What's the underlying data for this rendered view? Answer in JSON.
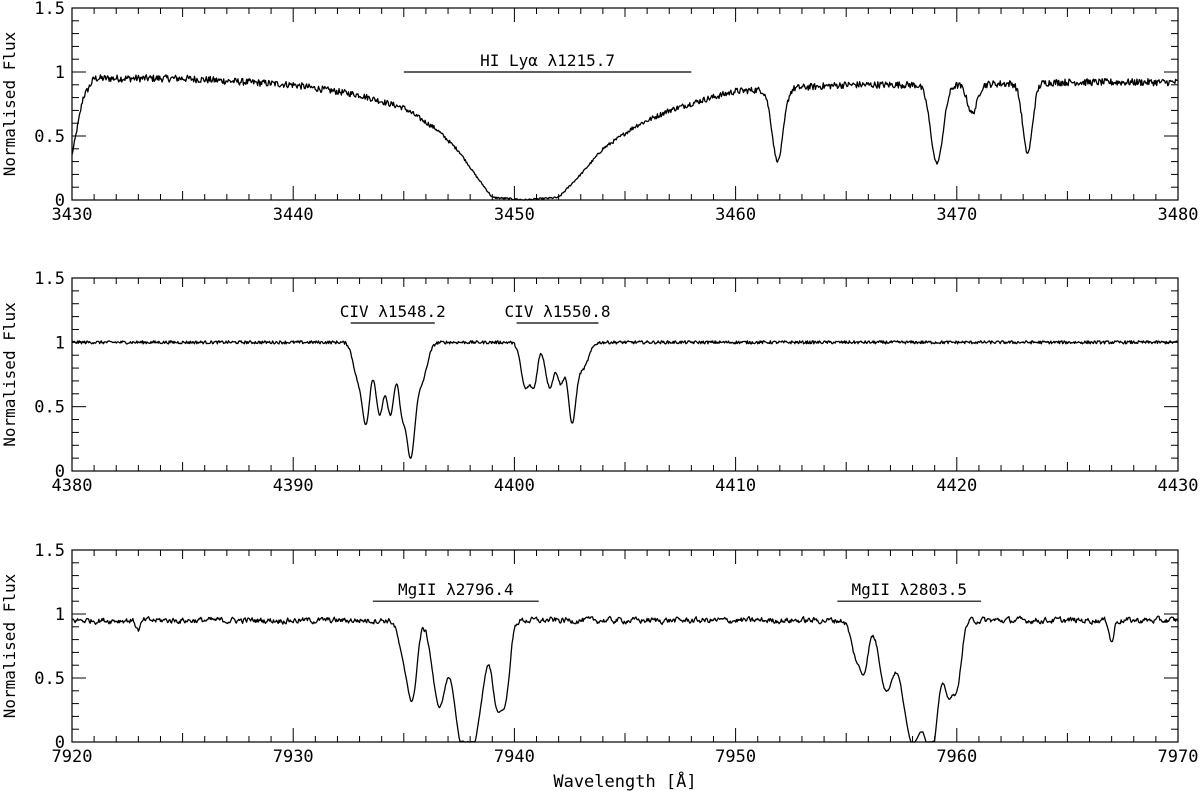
{
  "chart_data": [
    {
      "type": "line",
      "ylabel": "Normalised Flux",
      "xlabel": "",
      "xlim": [
        3430,
        3480
      ],
      "ylim": [
        0,
        1.5
      ],
      "xticks": [
        "3430",
        "3440",
        "3450",
        "3460",
        "3470",
        "3480"
      ],
      "yticks": [
        "0",
        "0.5",
        "1",
        "1.5"
      ],
      "grid": false,
      "continuum": [
        [
          3430,
          0.35
        ],
        [
          3430.5,
          0.8
        ],
        [
          3431,
          0.95
        ],
        [
          3435,
          0.95
        ],
        [
          3440,
          0.9
        ],
        [
          3443,
          0.82
        ],
        [
          3445,
          0.72
        ],
        [
          3446.5,
          0.55
        ],
        [
          3447.5,
          0.38
        ],
        [
          3448.3,
          0.18
        ],
        [
          3449,
          0.02
        ],
        [
          3450.5,
          0
        ],
        [
          3452,
          0.02
        ],
        [
          3453,
          0.2
        ],
        [
          3454,
          0.4
        ],
        [
          3455.5,
          0.58
        ],
        [
          3457,
          0.7
        ],
        [
          3458.5,
          0.78
        ],
        [
          3460,
          0.85
        ],
        [
          3465,
          0.9
        ],
        [
          3470,
          0.9
        ],
        [
          3475,
          0.92
        ],
        [
          3480,
          0.92
        ]
      ],
      "absorption_lines": [
        {
          "center": 3461.9,
          "depth": 0.65,
          "width": 0.25
        },
        {
          "center": 3469.1,
          "depth": 0.68,
          "width": 0.28
        },
        {
          "center": 3470.7,
          "depth": 0.25,
          "width": 0.22
        },
        {
          "center": 3473.2,
          "depth": 0.6,
          "width": 0.22
        }
      ],
      "annotations": [
        {
          "label": "HI Lyα λ1215.7",
          "x_start": 3445,
          "x_end": 3458,
          "y": 1.0
        }
      ]
    },
    {
      "type": "line",
      "ylabel": "Normalised Flux",
      "xlabel": "",
      "xlim": [
        4380,
        4430
      ],
      "ylim": [
        0,
        1.5
      ],
      "xticks": [
        "4380",
        "4390",
        "4400",
        "4410",
        "4420",
        "4430"
      ],
      "yticks": [
        "0",
        "0.5",
        "1",
        "1.5"
      ],
      "grid": false,
      "continuum": [
        [
          4380,
          1
        ],
        [
          4430,
          1
        ]
      ],
      "absorption_lines": [
        {
          "center": 4392.9,
          "depth": 0.25,
          "width": 0.2
        },
        {
          "center": 4393.3,
          "depth": 0.6,
          "width": 0.18
        },
        {
          "center": 4393.9,
          "depth": 0.55,
          "width": 0.18
        },
        {
          "center": 4394.4,
          "depth": 0.55,
          "width": 0.18
        },
        {
          "center": 4394.9,
          "depth": 0.45,
          "width": 0.15
        },
        {
          "center": 4395.3,
          "depth": 0.85,
          "width": 0.2
        },
        {
          "center": 4395.8,
          "depth": 0.3,
          "width": 0.25
        },
        {
          "center": 4400.5,
          "depth": 0.35,
          "width": 0.2
        },
        {
          "center": 4400.9,
          "depth": 0.3,
          "width": 0.15
        },
        {
          "center": 4401.6,
          "depth": 0.35,
          "width": 0.2
        },
        {
          "center": 4402.1,
          "depth": 0.3,
          "width": 0.15
        },
        {
          "center": 4402.6,
          "depth": 0.6,
          "width": 0.18
        },
        {
          "center": 4403.1,
          "depth": 0.2,
          "width": 0.25
        }
      ],
      "annotations": [
        {
          "label": "CIV λ1548.2",
          "x_start": 4392.6,
          "x_end": 4396.4,
          "y": 1.15
        },
        {
          "label": "CIV λ1550.8",
          "x_start": 4400.1,
          "x_end": 4403.8,
          "y": 1.15
        }
      ]
    },
    {
      "type": "line",
      "ylabel": "Normalised Flux",
      "xlabel": "Wavelength [Å]",
      "xlim": [
        7920,
        7970
      ],
      "ylim": [
        0,
        1.5
      ],
      "xticks": [
        "7920",
        "7930",
        "7940",
        "7950",
        "7960",
        "7970"
      ],
      "yticks": [
        "0",
        "0.5",
        "1",
        "1.5"
      ],
      "grid": false,
      "continuum": [
        [
          7920,
          0.95
        ],
        [
          7970,
          0.95
        ]
      ],
      "absorption_lines": [
        {
          "center": 7923,
          "depth": 0.08,
          "width": 0.1
        },
        {
          "center": 7935.0,
          "depth": 0.3,
          "width": 0.22
        },
        {
          "center": 7935.4,
          "depth": 0.6,
          "width": 0.2
        },
        {
          "center": 7936.6,
          "depth": 0.7,
          "width": 0.3
        },
        {
          "center": 7937.5,
          "depth": 0.55,
          "width": 0.3
        },
        {
          "center": 7938.1,
          "depth": 1.0,
          "width": 0.45
        },
        {
          "center": 7939.2,
          "depth": 0.6,
          "width": 0.2
        },
        {
          "center": 7939.6,
          "depth": 0.6,
          "width": 0.2
        },
        {
          "center": 7955.4,
          "depth": 0.25,
          "width": 0.2
        },
        {
          "center": 7955.8,
          "depth": 0.4,
          "width": 0.2
        },
        {
          "center": 7956.8,
          "depth": 0.55,
          "width": 0.3
        },
        {
          "center": 7958.0,
          "depth": 1.0,
          "width": 0.45
        },
        {
          "center": 7958.9,
          "depth": 0.95,
          "width": 0.3
        },
        {
          "center": 7959.6,
          "depth": 0.5,
          "width": 0.18
        },
        {
          "center": 7960.0,
          "depth": 0.55,
          "width": 0.2
        },
        {
          "center": 7967,
          "depth": 0.18,
          "width": 0.1
        }
      ],
      "annotations": [
        {
          "label": "MgII λ2796.4",
          "x_start": 7933.6,
          "x_end": 7941.1,
          "y": 1.1
        },
        {
          "label": "MgII λ2803.5",
          "x_start": 7954.6,
          "x_end": 7961.1,
          "y": 1.1
        }
      ]
    }
  ]
}
